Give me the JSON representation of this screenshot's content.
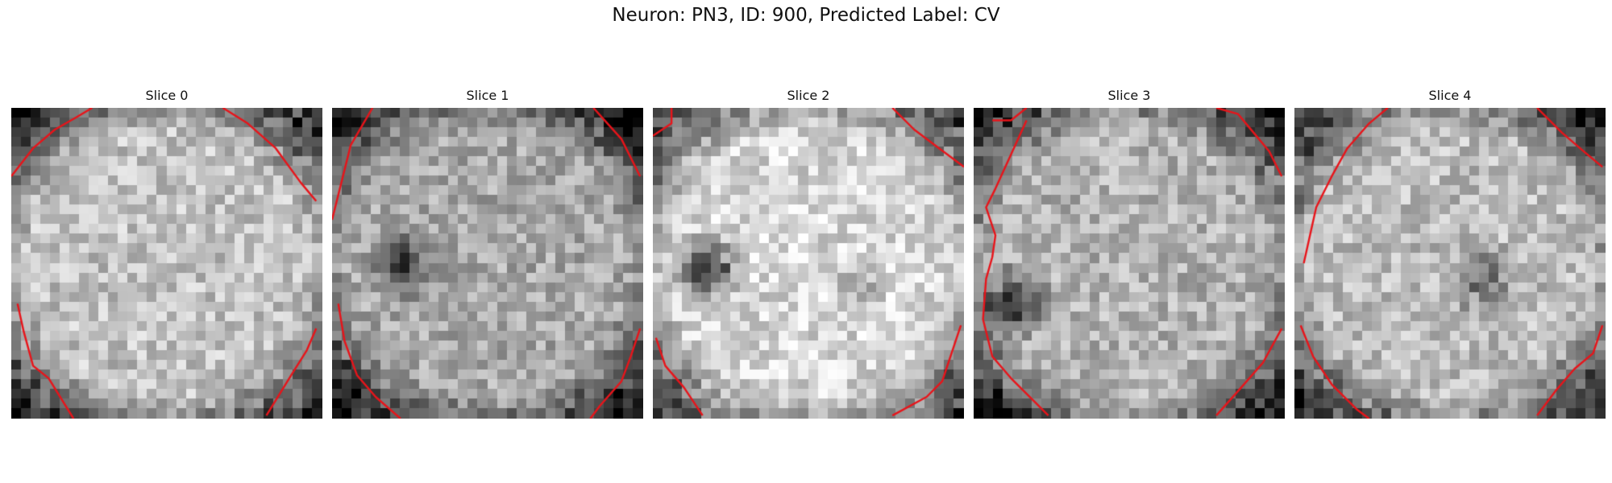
{
  "figure": {
    "title": "Neuron: PN3, ID: 900, Predicted Label: CV"
  },
  "panels": [
    {
      "title": "Slice 0"
    },
    {
      "title": "Slice 1"
    },
    {
      "title": "Slice 2"
    },
    {
      "title": "Slice 3"
    },
    {
      "title": "Slice 4"
    }
  ],
  "colors": {
    "contour": "#e8141a",
    "background": "#ffffff"
  }
}
